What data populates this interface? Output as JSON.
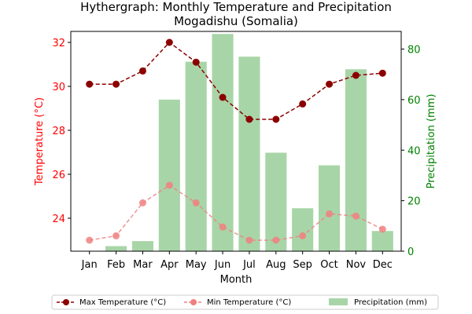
{
  "chart_data": {
    "type": "bar+line",
    "title_line1": "Hythergraph: Monthly Temperature and Precipitation",
    "title_line2": "Mogadishu (Somalia)",
    "xlabel": "Month",
    "ylabel_left": "Temperature (°C)",
    "ylabel_right": "Precipitation (mm)",
    "categories": [
      "Jan",
      "Feb",
      "Mar",
      "Apr",
      "May",
      "Jun",
      "Jul",
      "Aug",
      "Sep",
      "Oct",
      "Nov",
      "Dec"
    ],
    "temp_ylim": [
      22.5,
      32.5
    ],
    "temp_ticks": [
      24,
      26,
      28,
      30,
      32
    ],
    "precip_ylim": [
      0,
      87
    ],
    "precip_ticks": [
      0,
      20,
      40,
      60,
      80
    ],
    "series": [
      {
        "name": "Max Temperature (°C)",
        "axis": "left",
        "kind": "line",
        "values": [
          30.1,
          30.1,
          30.7,
          32.0,
          31.1,
          29.5,
          28.5,
          28.5,
          29.2,
          30.1,
          30.5,
          30.6
        ]
      },
      {
        "name": "Min Temperature (°C)",
        "axis": "left",
        "kind": "line",
        "values": [
          23.0,
          23.2,
          24.7,
          25.5,
          24.7,
          23.6,
          23.0,
          23.0,
          23.2,
          24.2,
          24.1,
          23.5
        ]
      },
      {
        "name": "Precipitation (mm)",
        "axis": "right",
        "kind": "bar",
        "values": [
          0,
          2,
          4,
          60,
          75,
          86,
          77,
          39,
          17,
          34,
          72,
          8
        ]
      }
    ],
    "colors": {
      "max_line": "#8b0000",
      "min_line": "#f08080",
      "bars": "#a8d5a8",
      "left_axis": "#ff0000",
      "right_axis": "#008000"
    },
    "legend_placement": "bottom-center"
  }
}
